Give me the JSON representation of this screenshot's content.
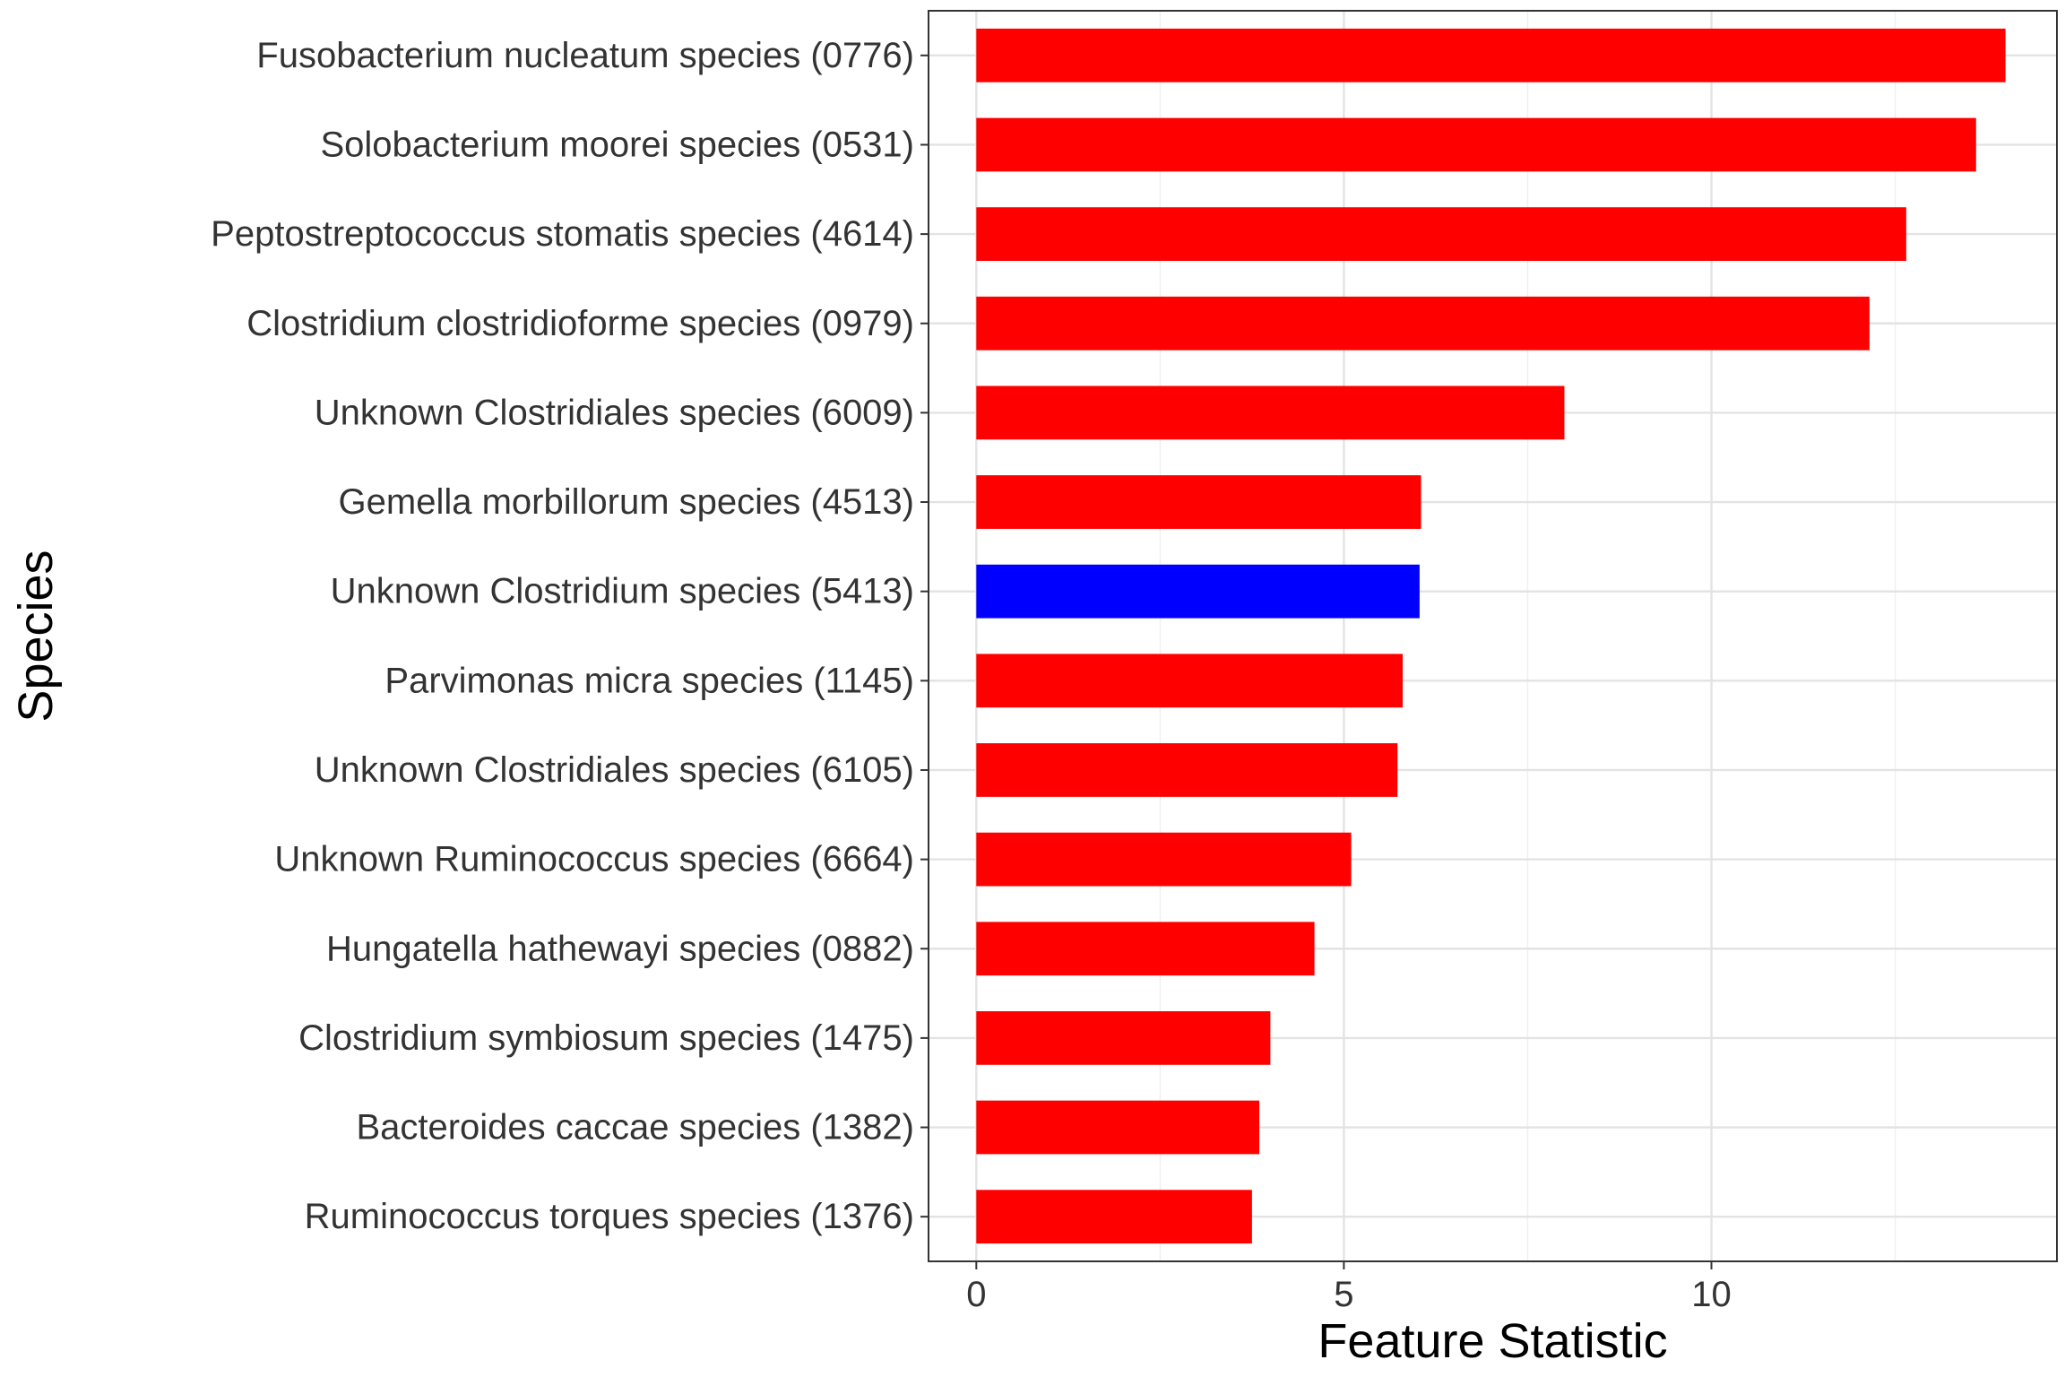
{
  "chart_data": {
    "type": "bar",
    "orientation": "horizontal",
    "xlabel": "Feature Statistic",
    "ylabel": "Species",
    "xlim": [
      -0.65,
      14.7
    ],
    "x_ticks": [
      0,
      5,
      10
    ],
    "grid": true,
    "categories": [
      "Fusobacterium nucleatum species (0776)",
      "Solobacterium moorei species (0531)",
      "Peptostreptococcus stomatis species (4614)",
      "Clostridium clostridioforme species (0979)",
      "Unknown Clostridiales species (6009)",
      "Gemella morbillorum species (4513)",
      "Unknown Clostridium species (5413)",
      "Parvimonas micra species (1145)",
      "Unknown Clostridiales species (6105)",
      "Unknown Ruminococcus species (6664)",
      "Hungatella hathewayi species (0882)",
      "Clostridium symbiosum species (1475)",
      "Bacteroides caccae species (1382)",
      "Ruminococcus torques species (1376)"
    ],
    "values": [
      14.0,
      13.6,
      12.65,
      12.15,
      8.0,
      6.05,
      6.03,
      5.8,
      5.73,
      5.1,
      4.6,
      4.0,
      3.85,
      3.75
    ],
    "colors": [
      "#ff0000",
      "#ff0000",
      "#ff0000",
      "#ff0000",
      "#ff0000",
      "#ff0000",
      "#0000ff",
      "#ff0000",
      "#ff0000",
      "#ff0000",
      "#ff0000",
      "#ff0000",
      "#ff0000",
      "#ff0000"
    ]
  }
}
